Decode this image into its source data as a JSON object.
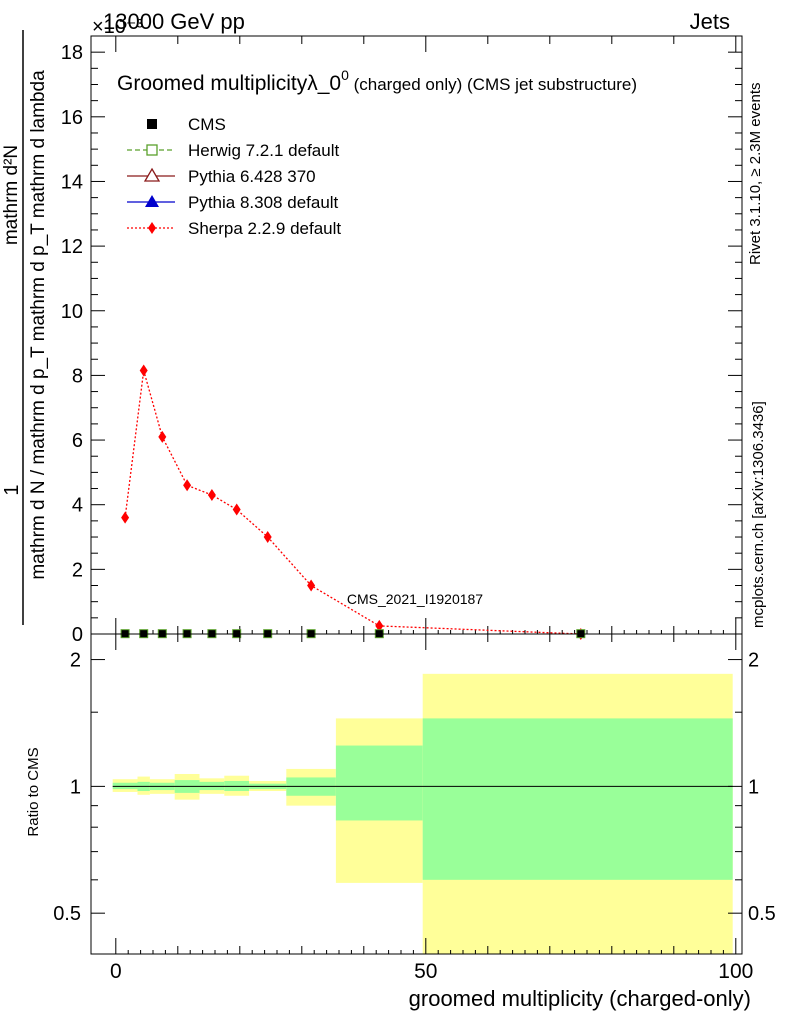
{
  "header": {
    "left": "13000 GeV pp",
    "right": "Jets",
    "exponent": "×10⁻³"
  },
  "side_labels": {
    "rivet": "Rivet 3.1.10, ≥ 2.3M events",
    "mcplots": "mcplots.cern.ch [arXiv:1306.3436]"
  },
  "analysis_id": "CMS_2021_I1920187",
  "chart_data": [
    {
      "type": "line",
      "title": "Groomed multiplicityλ_0",
      "title_sup": "0",
      "title_suffix": " (charged only) (CMS jet substructure)",
      "ylabel_top": "1",
      "ylabel_num": "mathrm d²N",
      "ylabel_den": "mathrm d N / mathrm d p_T mathrm d p_T mathrm d lambda",
      "ylim": [
        0,
        18.5
      ],
      "xlim": [
        -4,
        101
      ],
      "y_ticks": [
        0,
        2,
        4,
        6,
        8,
        10,
        12,
        14,
        16,
        18
      ],
      "legend": [
        {
          "name": "CMS",
          "color": "#000000",
          "marker": "square-filled",
          "dash": "none"
        },
        {
          "name": "Herwig 7.2.1 default",
          "color": "#5aa02c",
          "marker": "square-open",
          "dash": "dashed"
        },
        {
          "name": "Pythia 6.428 370",
          "color": "#8b1a1a",
          "marker": "triangle-open",
          "dash": "solid"
        },
        {
          "name": "Pythia 8.308 default",
          "color": "#0000cc",
          "marker": "triangle-filled",
          "dash": "solid"
        },
        {
          "name": "Sherpa 2.2.9 default",
          "color": "#ff0000",
          "marker": "diamond-filled",
          "dash": "dotted"
        }
      ],
      "series": [
        {
          "name": "Sherpa 2.2.9 default",
          "x": [
            1.5,
            4.5,
            7.5,
            11.5,
            15.5,
            19.5,
            24.5,
            31.5,
            42.5,
            75
          ],
          "y": [
            3.6,
            8.15,
            6.1,
            4.6,
            4.3,
            3.85,
            3.0,
            1.5,
            0.25,
            0.0
          ]
        },
        {
          "name": "CMS",
          "x": [
            1.5,
            4.5,
            7.5,
            11.5,
            15.5,
            19.5,
            24.5,
            31.5,
            42.5,
            75
          ],
          "y": [
            0.01,
            0.01,
            0.01,
            0.01,
            0.01,
            0.01,
            0.01,
            0.01,
            0.01,
            0.01
          ]
        }
      ]
    },
    {
      "type": "area",
      "ylabel": "Ratio to CMS",
      "xlabel": "groomed multiplicity (charged-only)",
      "x_ticks": [
        0,
        50,
        100
      ],
      "ratio_ticks": [
        0.5,
        1,
        2
      ],
      "ylim": [
        0.4,
        2.3
      ],
      "band_colors": {
        "outer": "#ffff99",
        "inner": "#99ff99",
        "line": "#000000"
      },
      "bins": [
        {
          "x0": -0.5,
          "x1": 3.5,
          "inner_lo": 0.985,
          "inner_hi": 1.02,
          "outer_lo": 0.97,
          "outer_hi": 1.04
        },
        {
          "x0": 3.5,
          "x1": 5.5,
          "inner_lo": 0.975,
          "inner_hi": 1.025,
          "outer_lo": 0.955,
          "outer_hi": 1.055
        },
        {
          "x0": 5.5,
          "x1": 9.5,
          "inner_lo": 0.98,
          "inner_hi": 1.02,
          "outer_lo": 0.96,
          "outer_hi": 1.04
        },
        {
          "x0": 9.5,
          "x1": 13.5,
          "inner_lo": 0.965,
          "inner_hi": 1.035,
          "outer_lo": 0.93,
          "outer_hi": 1.07
        },
        {
          "x0": 13.5,
          "x1": 17.5,
          "inner_lo": 0.98,
          "inner_hi": 1.025,
          "outer_lo": 0.96,
          "outer_hi": 1.045
        },
        {
          "x0": 17.5,
          "x1": 21.5,
          "inner_lo": 0.975,
          "inner_hi": 1.03,
          "outer_lo": 0.95,
          "outer_hi": 1.06
        },
        {
          "x0": 21.5,
          "x1": 27.5,
          "inner_lo": 0.985,
          "inner_hi": 1.015,
          "outer_lo": 0.975,
          "outer_hi": 1.03
        },
        {
          "x0": 27.5,
          "x1": 35.5,
          "inner_lo": 0.95,
          "inner_hi": 1.05,
          "outer_lo": 0.9,
          "outer_hi": 1.1
        },
        {
          "x0": 35.5,
          "x1": 49.5,
          "inner_lo": 0.83,
          "inner_hi": 1.25,
          "outer_lo": 0.59,
          "outer_hi": 1.45
        },
        {
          "x0": 49.5,
          "x1": 99.5,
          "inner_lo": 0.6,
          "inner_hi": 1.45,
          "outer_lo": 0.3,
          "outer_hi": 1.85
        }
      ]
    }
  ]
}
